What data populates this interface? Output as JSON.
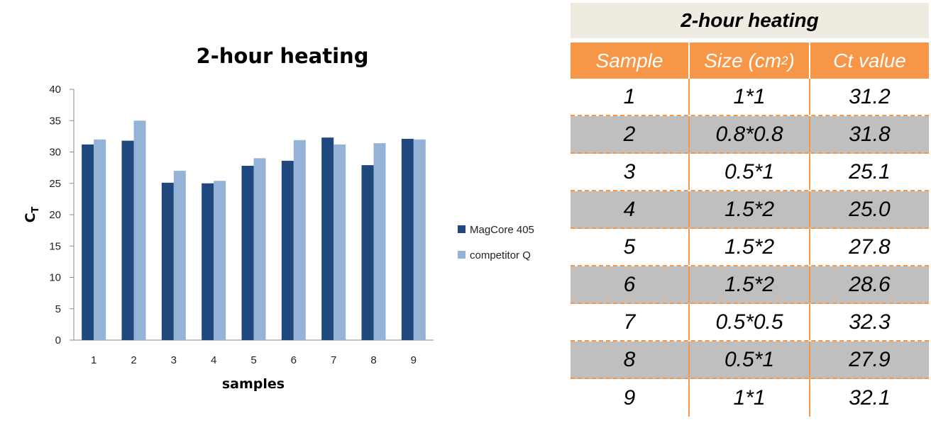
{
  "chart_data": {
    "type": "bar",
    "title": "2-hour heating",
    "xlabel": "samples",
    "ylabel": "C",
    "ylabel_sub": "T",
    "categories": [
      "1",
      "2",
      "3",
      "4",
      "5",
      "6",
      "7",
      "8",
      "9"
    ],
    "series": [
      {
        "name": "MagCore 405",
        "color": "#1f497d",
        "values": [
          31.2,
          31.8,
          25.1,
          25.0,
          27.8,
          28.6,
          32.3,
          27.9,
          32.1
        ]
      },
      {
        "name": "competitor Q",
        "color": "#95b3d7",
        "values": [
          32.0,
          35.0,
          27.0,
          25.4,
          29.0,
          31.9,
          31.2,
          31.4,
          32.0
        ]
      }
    ],
    "ylim": [
      0,
      40
    ],
    "yticks": [
      0,
      5,
      10,
      15,
      20,
      25,
      30,
      35,
      40
    ],
    "legend_position": "right",
    "grid": false
  },
  "table": {
    "title": "2-hour heating",
    "headers": {
      "sample": "Sample",
      "size": "Size (cm",
      "size_sup": "2",
      "size_end": ")",
      "ct": "Ct value"
    },
    "rows": [
      {
        "sample": "1",
        "size": "1*1",
        "ct": "31.2"
      },
      {
        "sample": "2",
        "size": "0.8*0.8",
        "ct": "31.8"
      },
      {
        "sample": "3",
        "size": "0.5*1",
        "ct": "25.1"
      },
      {
        "sample": "4",
        "size": "1.5*2",
        "ct": "25.0"
      },
      {
        "sample": "5",
        "size": "1.5*2",
        "ct": "27.8"
      },
      {
        "sample": "6",
        "size": "1.5*2",
        "ct": "28.6"
      },
      {
        "sample": "7",
        "size": "0.5*0.5",
        "ct": "32.3"
      },
      {
        "sample": "8",
        "size": "0.5*1",
        "ct": "27.9"
      },
      {
        "sample": "9",
        "size": "1*1",
        "ct": "32.1"
      }
    ]
  }
}
